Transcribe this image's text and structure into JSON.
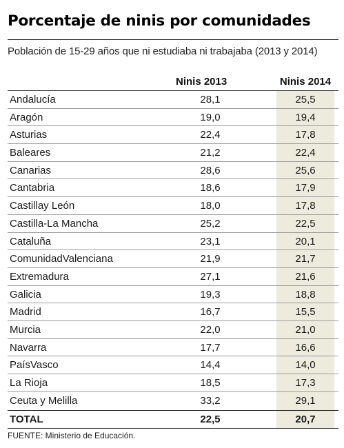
{
  "title": "Porcentaje de ninis por comunidades",
  "subtitle": "Población de 15-29 años que ni estudiaba ni trabajaba (2013 y 2014)",
  "source": "FUENTE: Ministerio de Educación.",
  "colors": {
    "highlight_column": "#ecebdd",
    "text": "#1a1a1a"
  },
  "chart_data": {
    "type": "table",
    "title": "Porcentaje de ninis por comunidades",
    "subtitle": "Población de 15-29 años que ni estudiaba ni trabajaba (2013 y 2014)",
    "columns": [
      "Ninis 2013",
      "Ninis 2014"
    ],
    "rows": [
      {
        "name": "Andalucía",
        "v2013": "28,1",
        "v2014": "25,5"
      },
      {
        "name": "Aragón",
        "v2013": "19,0",
        "v2014": "19,4"
      },
      {
        "name": "Asturias",
        "v2013": "22,4",
        "v2014": "17,8"
      },
      {
        "name": "Baleares",
        "v2013": "21,2",
        "v2014": "22,4"
      },
      {
        "name": "Canarias",
        "v2013": "28,6",
        "v2014": "25,6"
      },
      {
        "name": "Cantabria",
        "v2013": "18,6",
        "v2014": "17,9"
      },
      {
        "name": "Castillay León",
        "v2013": "18,0",
        "v2014": "17,8"
      },
      {
        "name": "Castilla-La Mancha",
        "v2013": "25,2",
        "v2014": "22,5"
      },
      {
        "name": "Cataluña",
        "v2013": "23,1",
        "v2014": "20,1"
      },
      {
        "name": "ComunidadValenciana",
        "v2013": "21,9",
        "v2014": "21,7"
      },
      {
        "name": "Extremadura",
        "v2013": "27,1",
        "v2014": "21,6"
      },
      {
        "name": "Galicia",
        "v2013": "19,3",
        "v2014": "18,8"
      },
      {
        "name": "Madrid",
        "v2013": "16,7",
        "v2014": "15,5"
      },
      {
        "name": "Murcia",
        "v2013": "22,0",
        "v2014": "21,0"
      },
      {
        "name": "Navarra",
        "v2013": "17,7",
        "v2014": "16,6"
      },
      {
        "name": "PaísVasco",
        "v2013": "14,4",
        "v2014": "14,0"
      },
      {
        "name": "La Rioja",
        "v2013": "18,5",
        "v2014": "17,3"
      },
      {
        "name": "Ceuta y Melilla",
        "v2013": "33,2",
        "v2014": "29,1"
      }
    ],
    "total": {
      "name": "TOTAL",
      "v2013": "22,5",
      "v2014": "20,7"
    }
  }
}
